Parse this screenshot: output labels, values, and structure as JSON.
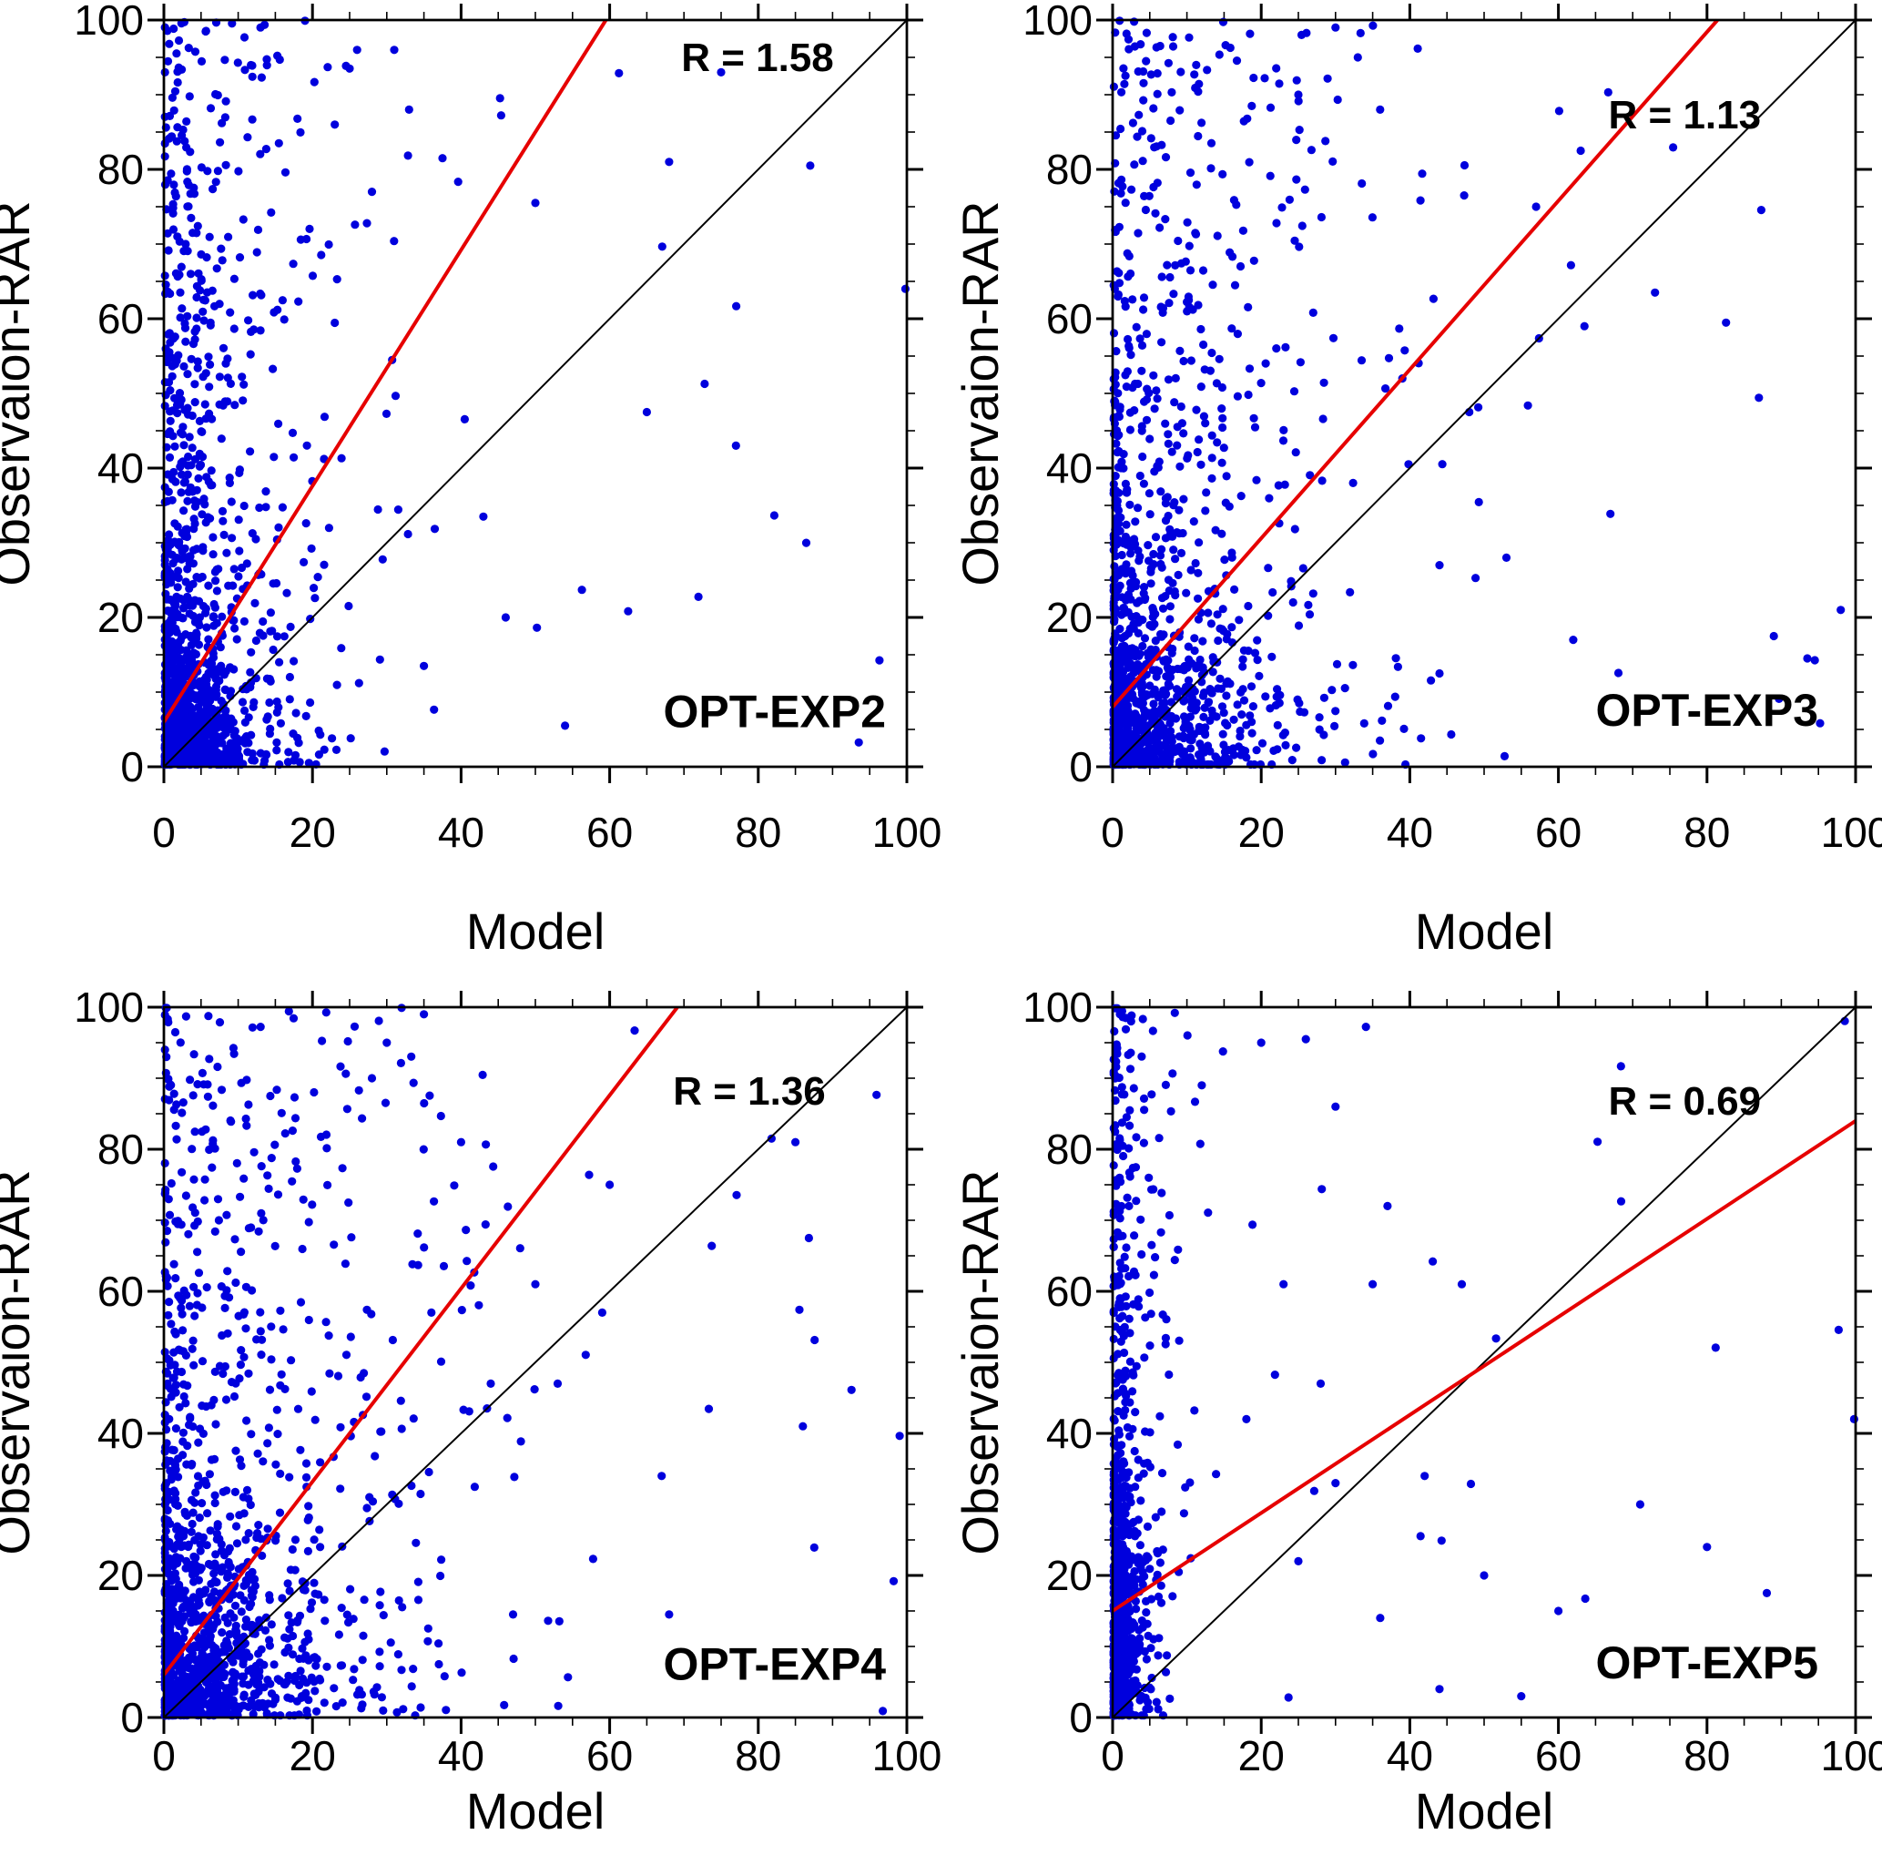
{
  "figure": {
    "background": "#ffffff",
    "note": "2x2 grid of model-vs-observation scatter plots; point clouds are dense (thousands of points) and are reproduced from the distribution models below plus the notable outlier points read from the figure"
  },
  "chart_data": [
    {
      "type": "scatter",
      "panel": "top-left",
      "title_label": "OPT-EXP2",
      "r_label": "R = 1.58",
      "r_value": 1.58,
      "xlabel": "Model",
      "ylabel": "Observaion-RAR",
      "xlim": [
        0,
        100
      ],
      "ylim": [
        0,
        100
      ],
      "x_ticks": [
        0,
        20,
        40,
        60,
        80,
        100
      ],
      "y_ticks": [
        0,
        20,
        40,
        60,
        80,
        100
      ],
      "minor_tick_step": 5,
      "grid": false,
      "legend": "none",
      "point_color": "#0000dd",
      "point_radius": 4.6,
      "identity_line": {
        "slope": 1,
        "intercept": 0,
        "color": "#000000"
      },
      "fit_line": {
        "slope": 1.58,
        "intercept": 6,
        "color": "#e60000"
      },
      "point_cloud_model": {
        "seed": 7,
        "components": [
          {
            "kind": "exp_exp",
            "n": 850,
            "sx": 4.5,
            "sy": 10
          },
          {
            "kind": "exp_pow",
            "n": 460,
            "sx": 8,
            "py": 1.15
          },
          {
            "kind": "pow_pow",
            "n": 45,
            "xp": 2.8,
            "yp": 1.2
          }
        ]
      },
      "notable_points": [
        [
          100,
          64
        ],
        [
          87,
          80.5
        ],
        [
          75,
          93
        ],
        [
          68,
          81
        ],
        [
          77,
          43
        ],
        [
          65,
          47.5
        ],
        [
          50,
          75.5
        ],
        [
          54,
          5.5
        ],
        [
          46,
          20
        ],
        [
          43,
          33.5
        ],
        [
          37.5,
          81.5
        ],
        [
          35,
          13.5
        ],
        [
          31,
          96
        ],
        [
          26,
          96
        ],
        [
          25,
          93.5
        ],
        [
          19,
          100
        ],
        [
          13,
          99
        ],
        [
          33,
          88
        ],
        [
          23,
          86
        ],
        [
          28,
          77
        ]
      ]
    },
    {
      "type": "scatter",
      "panel": "top-right",
      "title_label": "OPT-EXP3",
      "r_label": "R = 1.13",
      "r_value": 1.13,
      "xlabel": "Model",
      "ylabel": "Observaion-RAR",
      "xlim": [
        0,
        100
      ],
      "ylim": [
        0,
        100
      ],
      "x_ticks": [
        0,
        20,
        40,
        60,
        80,
        100
      ],
      "y_ticks": [
        0,
        20,
        40,
        60,
        80,
        100
      ],
      "minor_tick_step": 5,
      "grid": false,
      "legend": "none",
      "point_color": "#0000dd",
      "point_radius": 4.6,
      "identity_line": {
        "slope": 1,
        "intercept": 0,
        "color": "#000000"
      },
      "fit_line": {
        "slope": 1.13,
        "intercept": 8,
        "color": "#e60000"
      },
      "point_cloud_model": {
        "seed": 13,
        "components": [
          {
            "kind": "exp_exp",
            "n": 700,
            "sx": 7,
            "sy": 10
          },
          {
            "kind": "exp_pow",
            "n": 470,
            "sx": 12,
            "py": 1.15
          },
          {
            "kind": "pow_pow",
            "n": 45,
            "xp": 2.8,
            "yp": 1.2
          },
          {
            "kind": "exp_exp",
            "n": 160,
            "sx": 0.6,
            "sy": 20
          }
        ]
      },
      "notable_points": [
        [
          98,
          21
        ],
        [
          89,
          17.5
        ],
        [
          73,
          63.5
        ],
        [
          63.5,
          59
        ],
        [
          63,
          82.5
        ],
        [
          57,
          75
        ],
        [
          62,
          17
        ],
        [
          48,
          47.5
        ],
        [
          44,
          27
        ],
        [
          44,
          12.5
        ],
        [
          39,
          52
        ],
        [
          30,
          99
        ],
        [
          33,
          95
        ],
        [
          25,
          90
        ],
        [
          36,
          88
        ],
        [
          53,
          28
        ]
      ]
    },
    {
      "type": "scatter",
      "panel": "bottom-left",
      "title_label": "OPT-EXP4",
      "r_label": "R = 1.36",
      "r_value": 1.36,
      "xlabel": "Model",
      "ylabel": "Observaion-RAR",
      "xlim": [
        0,
        100
      ],
      "ylim": [
        0,
        100
      ],
      "x_ticks": [
        0,
        20,
        40,
        60,
        80,
        100
      ],
      "y_ticks": [
        0,
        20,
        40,
        60,
        80,
        100
      ],
      "minor_tick_step": 5,
      "grid": false,
      "legend": "none",
      "point_color": "#0000dd",
      "point_radius": 4.6,
      "identity_line": {
        "slope": 1,
        "intercept": 0,
        "color": "#000000"
      },
      "fit_line": {
        "slope": 1.36,
        "intercept": 6,
        "color": "#e60000"
      },
      "point_cloud_model": {
        "seed": 21,
        "components": [
          {
            "kind": "exp_exp",
            "n": 700,
            "sx": 8,
            "sy": 11
          },
          {
            "kind": "exp_pow",
            "n": 500,
            "sx": 13,
            "py": 1.1
          },
          {
            "kind": "pow_pow",
            "n": 45,
            "xp": 2.8,
            "yp": 1.2
          },
          {
            "kind": "exp_exp",
            "n": 150,
            "sx": 0.6,
            "sy": 20
          }
        ]
      },
      "notable_points": [
        [
          85,
          81
        ],
        [
          86,
          41
        ],
        [
          67,
          34
        ],
        [
          60,
          75
        ],
        [
          59,
          57
        ],
        [
          47,
          14.5
        ],
        [
          44,
          47
        ],
        [
          40,
          81
        ],
        [
          36,
          57
        ],
        [
          32,
          100
        ],
        [
          35,
          99
        ],
        [
          30,
          95
        ],
        [
          28,
          90
        ],
        [
          53,
          47
        ],
        [
          50,
          61
        ],
        [
          68,
          14.5
        ]
      ]
    },
    {
      "type": "scatter",
      "panel": "bottom-right",
      "title_label": "OPT-EXP5",
      "r_label": "R = 0.69",
      "r_value": 0.69,
      "xlabel": "Model",
      "ylabel": "Observaion-RAR",
      "xlim": [
        0,
        100
      ],
      "ylim": [
        0,
        100
      ],
      "x_ticks": [
        0,
        20,
        40,
        60,
        80,
        100
      ],
      "y_ticks": [
        0,
        20,
        40,
        60,
        80,
        100
      ],
      "minor_tick_step": 5,
      "grid": false,
      "legend": "none",
      "point_color": "#0000dd",
      "point_radius": 4.6,
      "identity_line": {
        "slope": 1,
        "intercept": 0,
        "color": "#000000"
      },
      "fit_line": {
        "slope": 0.69,
        "intercept": 15,
        "color": "#e60000"
      },
      "point_cloud_model": {
        "seed": 29,
        "components": [
          {
            "kind": "exp_exp",
            "n": 700,
            "sx": 1.3,
            "sy": 14
          },
          {
            "kind": "exp_pow",
            "n": 220,
            "sx": 2.5,
            "py": 0.9
          },
          {
            "kind": "pow_pow",
            "n": 50,
            "xp": 3.0,
            "yp": 1.0
          }
        ]
      },
      "notable_points": [
        [
          100,
          42
        ],
        [
          80,
          24
        ],
        [
          71,
          30
        ],
        [
          60,
          15
        ],
        [
          55,
          3
        ],
        [
          47,
          61
        ],
        [
          42,
          34
        ],
        [
          37,
          72
        ],
        [
          35,
          61
        ],
        [
          30,
          86
        ],
        [
          26,
          95.5
        ],
        [
          20,
          95
        ],
        [
          12,
          89
        ],
        [
          30,
          33
        ],
        [
          25,
          22
        ],
        [
          18,
          42
        ],
        [
          23,
          61
        ],
        [
          28,
          47
        ],
        [
          50,
          20
        ],
        [
          44,
          4
        ]
      ]
    }
  ]
}
